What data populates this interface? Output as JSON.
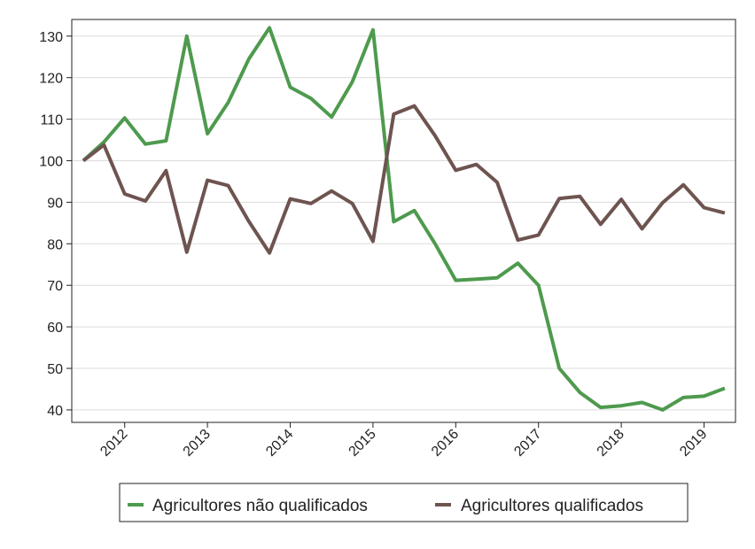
{
  "chart_data": {
    "type": "line",
    "title": "",
    "xlabel": "",
    "ylabel": "",
    "ylim": [
      37,
      134
    ],
    "yticks": [
      40,
      50,
      60,
      70,
      80,
      90,
      100,
      110,
      120,
      130
    ],
    "xticks": [
      "2012",
      "2013",
      "2014",
      "2015",
      "2016",
      "2017",
      "2018",
      "2019"
    ],
    "x": [
      "2011Q3",
      "2011Q4",
      "2012Q1",
      "2012Q2",
      "2012Q3",
      "2012Q4",
      "2013Q1",
      "2013Q2",
      "2013Q3",
      "2013Q4",
      "2014Q1",
      "2014Q2",
      "2014Q3",
      "2014Q4",
      "2015Q1",
      "2015Q2",
      "2015Q3",
      "2015Q4",
      "2016Q1",
      "2016Q2",
      "2016Q3",
      "2016Q4",
      "2017Q1",
      "2017Q2",
      "2017Q3",
      "2017Q4",
      "2018Q1",
      "2018Q2",
      "2018Q3",
      "2018Q4",
      "2019Q1",
      "2019Q2"
    ],
    "grid": true,
    "legend_position": "bottom",
    "series": [
      {
        "name": "Agricultores não qualificados",
        "color": "#4e9a4e",
        "values": [
          100,
          104.5,
          110.3,
          104,
          104.8,
          130,
          106.5,
          114,
          124.5,
          132,
          117.7,
          115,
          110.5,
          119,
          131.5,
          85.3,
          88,
          80,
          71.2,
          71.5,
          71.8,
          75.3,
          70,
          50,
          44.2,
          40.6,
          41,
          41.8,
          40,
          43,
          43.3,
          45.2
        ]
      },
      {
        "name": "Agricultores qualificados",
        "color": "#6e5450",
        "values": [
          100,
          103.8,
          92,
          90.3,
          97.6,
          78,
          95.3,
          94,
          85.4,
          77.8,
          90.8,
          89.7,
          92.7,
          89.7,
          80.6,
          111.2,
          113.2,
          106,
          97.7,
          99.1,
          94.8,
          80.9,
          82.1,
          90.9,
          91.4,
          84.7,
          90.7,
          83.6,
          89.9,
          94.2,
          88.7,
          87.4
        ]
      }
    ]
  }
}
